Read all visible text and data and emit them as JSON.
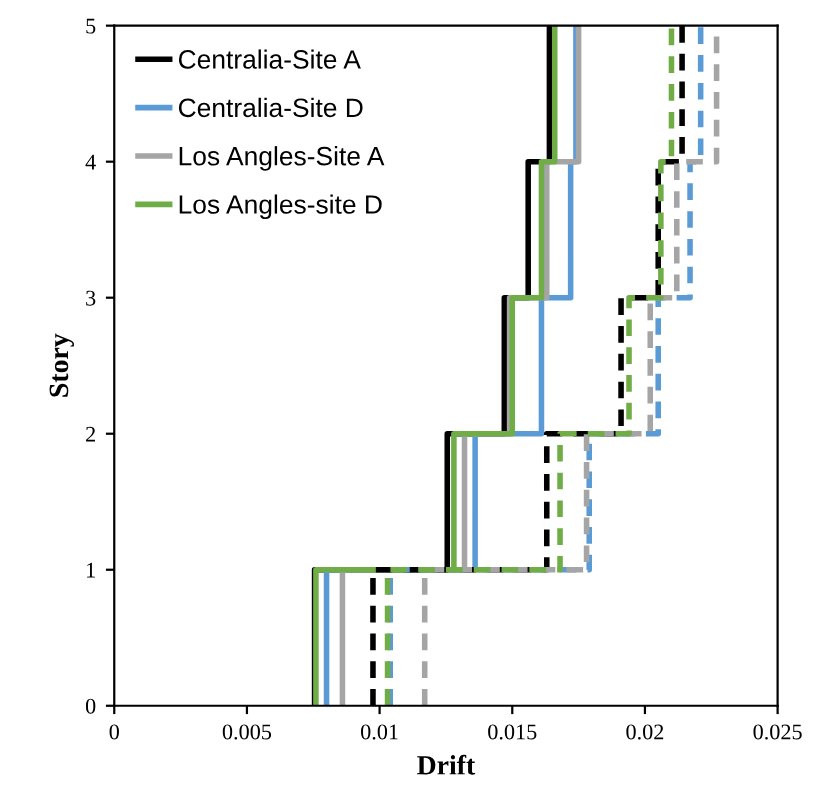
{
  "chart_data": {
    "type": "line",
    "xlabel": "Drift",
    "ylabel": "Story",
    "xlim": [
      0,
      0.025
    ],
    "ylim": [
      0,
      5
    ],
    "xticks": [
      0,
      0.005,
      0.01,
      0.015,
      0.02,
      0.025
    ],
    "yticks": [
      0,
      1,
      2,
      3,
      4,
      5
    ],
    "grid": false,
    "legend": "top left",
    "marker": "none",
    "series": [
      {
        "name": "Centralia-Site A",
        "color": "#000000",
        "line_style": "solid",
        "x": [
          0.00755,
          0.00755,
          0.01255,
          0.01255,
          0.0147,
          0.0147,
          0.0156,
          0.0156,
          0.0164,
          0.0164
        ],
        "values": [
          0,
          1,
          1,
          2,
          2,
          3,
          3,
          4,
          4,
          5
        ]
      },
      {
        "name": "Centralia-Site D",
        "color": "#5b9bd5",
        "line_style": "solid",
        "x": [
          0.008,
          0.008,
          0.0136,
          0.0136,
          0.0161,
          0.0161,
          0.0172,
          0.0172,
          0.0174,
          0.0174
        ],
        "values": [
          0,
          1,
          1,
          2,
          2,
          3,
          3,
          4,
          4,
          5
        ]
      },
      {
        "name": "Los Angles-Site A",
        "color": "#a5a5a5",
        "line_style": "solid",
        "x": [
          0.0086,
          0.0086,
          0.0132,
          0.0132,
          0.0149,
          0.0149,
          0.0163,
          0.0163,
          0.0175,
          0.0175
        ],
        "values": [
          0,
          1,
          1,
          2,
          2,
          3,
          3,
          4,
          4,
          5
        ]
      },
      {
        "name": "Los Angles-site D",
        "color": "#70ad47",
        "line_style": "solid",
        "x": [
          0.0076,
          0.0076,
          0.0128,
          0.0128,
          0.015,
          0.015,
          0.0161,
          0.0161,
          0.0166,
          0.0166
        ],
        "values": [
          0,
          1,
          1,
          2,
          2,
          3,
          3,
          4,
          4,
          5
        ]
      },
      {
        "color": "#000000",
        "line_style": "dashed",
        "x": [
          0.00975,
          0.00975,
          0.0163,
          0.0163,
          0.0191,
          0.0191,
          0.0205,
          0.0205,
          0.0214,
          0.0214
        ],
        "values": [
          0,
          1,
          1,
          2,
          2,
          3,
          3,
          4,
          4,
          5
        ]
      },
      {
        "color": "#5b9bd5",
        "line_style": "dashed",
        "x": [
          0.0104,
          0.0104,
          0.0179,
          0.0179,
          0.0205,
          0.0205,
          0.0217,
          0.0217,
          0.0221,
          0.0221
        ],
        "values": [
          0,
          1,
          1,
          2,
          2,
          3,
          3,
          4,
          4,
          5
        ]
      },
      {
        "color": "#a5a5a5",
        "line_style": "dashed",
        "x": [
          0.0117,
          0.0117,
          0.0178,
          0.0178,
          0.0202,
          0.0202,
          0.0212,
          0.0212,
          0.0227,
          0.0227
        ],
        "values": [
          0,
          1,
          1,
          2,
          2,
          3,
          3,
          4,
          4,
          5
        ]
      },
      {
        "color": "#70ad47",
        "line_style": "dashed",
        "x": [
          0.0103,
          0.0103,
          0.0168,
          0.0168,
          0.0194,
          0.0194,
          0.0206,
          0.0206,
          0.021,
          0.021
        ],
        "values": [
          0,
          1,
          1,
          2,
          2,
          3,
          3,
          4,
          4,
          5
        ]
      }
    ]
  }
}
